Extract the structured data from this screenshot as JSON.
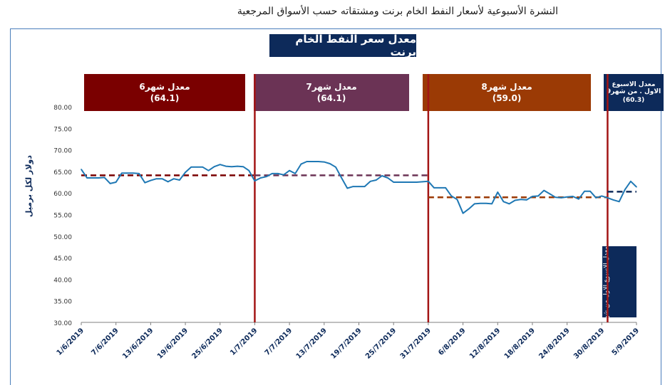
{
  "title": "النشرة الأسبوعية لأسعار النفط الخام برنت ومشتقاته حسب الأسواق المرجعية",
  "chart_title": "معدل سعر النفط الخام برنت",
  "ylabel": "دولار لكل برميل",
  "months": [
    {
      "label": "معدل شهر6",
      "value": "(64.1)",
      "color": "#7a0000"
    },
    {
      "label": "معدل شهر7",
      "value": "(64.1)",
      "color": "#6b3355"
    },
    {
      "label": "معدل شهر8",
      "value": "(59.0)",
      "color": "#9b3a05"
    },
    {
      "label": "معدل الاسبوع الاول . من شهر9",
      "value": "(60.3)",
      "color": "#0d2a5a"
    }
  ],
  "week_note": "معدل الاسبوع الاول من شهر9 (60.3)",
  "chart_data": {
    "type": "line",
    "ylim": [
      30,
      80
    ],
    "y_ticks": [
      "80.00",
      "75.00",
      "70.00",
      "65.00",
      "60.00",
      "55.00",
      "50.00",
      "45.00",
      "40.00",
      "35.00",
      "30.00"
    ],
    "x_ticks": [
      "1/6/2019",
      "7/6/2019",
      "13/6/2019",
      "19/6/2019",
      "25/6/2019",
      "1/7/2019",
      "7/7/2019",
      "13/7/2019",
      "19/7/2019",
      "25/7/2019",
      "31/7/2019",
      "6/8/2019",
      "12/8/2019",
      "18/8/2019",
      "24/8/2019",
      "30/8/2019",
      "5/9/2019"
    ],
    "series": [
      {
        "values": [
          65.5,
          63.5,
          63.5,
          63.5,
          63.6,
          62.2,
          62.5,
          64.6,
          64.6,
          64.6,
          64.5,
          62.4,
          62.9,
          63.3,
          63.3,
          62.6,
          63.3,
          63.0,
          64.8,
          66.0,
          66.0,
          66.0,
          65.2,
          66.1,
          66.6,
          66.2,
          66.1,
          66.2,
          66.1,
          65.2,
          62.8,
          63.5,
          63.8,
          64.5,
          64.5,
          64.2,
          65.2,
          64.5,
          66.7,
          67.3,
          67.3,
          67.3,
          67.2,
          66.8,
          66.0,
          63.5,
          61.1,
          61.5,
          61.5,
          61.5,
          62.7,
          63.0,
          64.0,
          63.5,
          62.5,
          62.5,
          62.5,
          62.5,
          62.5,
          62.6,
          62.7,
          61.2,
          61.2,
          61.2,
          59.3,
          58.5,
          55.3,
          56.3,
          57.5,
          57.6,
          57.6,
          57.5,
          60.2,
          58.0,
          57.5,
          58.3,
          58.5,
          58.4,
          59.2,
          59.3,
          60.6,
          59.8,
          59.0,
          58.9,
          59.1,
          59.2,
          58.6,
          60.4,
          60.4,
          58.9,
          59.3,
          58.9,
          58.4,
          58.0,
          60.8,
          62.7,
          61.4
        ],
        "color": "#1f78b4"
      }
    ],
    "averages": [
      {
        "from": 0,
        "to": 30,
        "value": 64.1,
        "color": "#7a0000"
      },
      {
        "from": 30,
        "to": 60,
        "value": 64.1,
        "color": "#6b3355"
      },
      {
        "from": 60,
        "to": 91,
        "value": 59.0,
        "color": "#9b3a05"
      },
      {
        "from": 91,
        "to": 96,
        "value": 60.3,
        "color": "#0d2a5a"
      }
    ],
    "month_dividers": [
      30,
      60,
      91
    ]
  }
}
